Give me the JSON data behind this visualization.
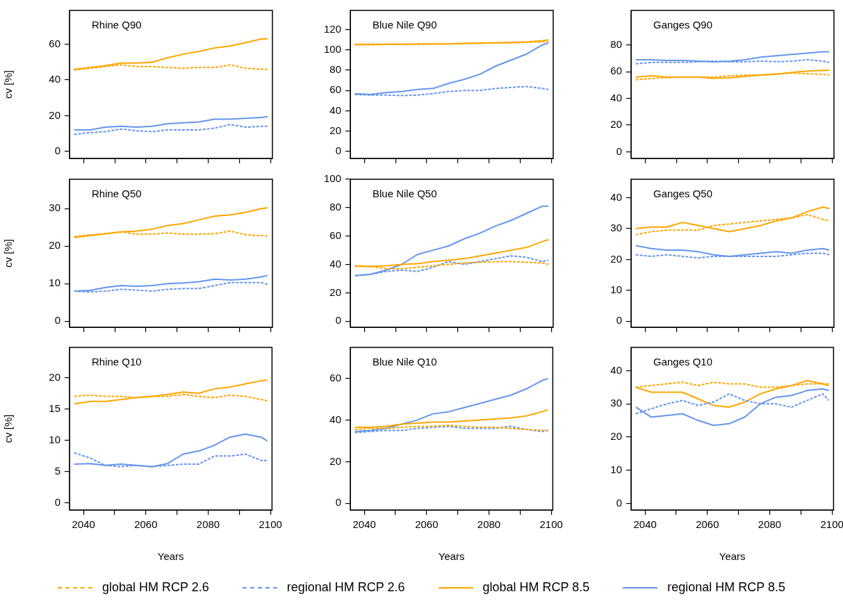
{
  "chart_data": [
    {
      "type": "line",
      "title": "Rhine Q90",
      "ylabel": "cv [%]",
      "x": [
        2037,
        2042,
        2047,
        2052,
        2057,
        2062,
        2067,
        2072,
        2077,
        2082,
        2087,
        2092,
        2097,
        2099
      ],
      "xlim": [
        2035.5,
        2100.5
      ],
      "xticks": [
        2040,
        {
          "value": 2050,
          "label": null
        },
        2060,
        {
          "value": 2070,
          "label": null
        },
        2080,
        {
          "value": 2090,
          "label": null
        },
        2100
      ],
      "ylim": [
        -4,
        79
      ],
      "yticks": [
        0,
        20,
        40,
        60
      ],
      "tick_labels": "y",
      "series": [
        {
          "color": "#ffa500",
          "line_style": "dashed",
          "values": [
            45.5,
            46.5,
            47.5,
            48.5,
            47.5,
            47.5,
            47,
            46.5,
            47,
            47,
            48.5,
            46.5,
            46,
            46
          ]
        },
        {
          "color": "#6495ed",
          "line_style": "dashed",
          "values": [
            9.5,
            10.5,
            11,
            12.5,
            11.5,
            11,
            12,
            12,
            12,
            13,
            15,
            13.5,
            14,
            14
          ]
        },
        {
          "color": "#ffa500",
          "line_style": "solid",
          "values": [
            46,
            47,
            48,
            49.5,
            49.5,
            50,
            52.5,
            54.5,
            56,
            58,
            59,
            61,
            63,
            63
          ]
        },
        {
          "color": "#6495ed",
          "line_style": "solid",
          "values": [
            12,
            12,
            13.5,
            14,
            13.5,
            14,
            15.5,
            16,
            16.5,
            18,
            18,
            18.5,
            19,
            19.5
          ]
        }
      ]
    },
    {
      "type": "line",
      "title": "Blue Nile Q90",
      "x": [
        2037,
        2042,
        2047,
        2052,
        2057,
        2062,
        2067,
        2072,
        2077,
        2082,
        2087,
        2092,
        2097,
        2099
      ],
      "xlim": [
        2035.5,
        2100.5
      ],
      "xticks": [
        2040,
        {
          "value": 2050,
          "label": null
        },
        2060,
        {
          "value": 2070,
          "label": null
        },
        2080,
        {
          "value": 2090,
          "label": null
        },
        2100
      ],
      "ylim": [
        -7,
        139
      ],
      "yticks": [
        0,
        20,
        40,
        60,
        80,
        100,
        120
      ],
      "tick_labels": "y",
      "series": [
        {
          "color": "#ffa500",
          "line_style": "dashed",
          "values": [
            105,
            105,
            105.5,
            105.5,
            105.5,
            106,
            106,
            106.5,
            106.5,
            107,
            107,
            107.5,
            108,
            108
          ]
        },
        {
          "color": "#6495ed",
          "line_style": "dashed",
          "values": [
            56,
            55.5,
            55.5,
            55,
            55.5,
            57,
            59,
            60,
            60,
            62,
            63,
            64,
            62,
            61
          ]
        },
        {
          "color": "#ffa500",
          "line_style": "solid",
          "values": [
            105.5,
            105.5,
            105.5,
            105.5,
            106,
            106,
            106,
            106.5,
            107,
            107,
            107.5,
            108,
            109,
            110
          ]
        },
        {
          "color": "#6495ed",
          "line_style": "solid",
          "values": [
            57,
            56,
            58,
            59,
            61,
            62,
            67,
            71,
            76,
            84,
            90,
            96,
            105,
            107
          ]
        }
      ]
    },
    {
      "type": "line",
      "title": "Ganges Q90",
      "x": [
        2037,
        2042,
        2047,
        2052,
        2057,
        2062,
        2067,
        2072,
        2077,
        2082,
        2087,
        2092,
        2097,
        2099
      ],
      "xlim": [
        2035.5,
        2100.5
      ],
      "xticks": [
        2040,
        {
          "value": 2050,
          "label": null
        },
        2060,
        {
          "value": 2070,
          "label": null
        },
        2080,
        {
          "value": 2090,
          "label": null
        },
        2100
      ],
      "ylim": [
        -5,
        106
      ],
      "yticks": [
        0,
        20,
        40,
        60,
        80
      ],
      "tick_labels": "y",
      "series": [
        {
          "color": "#ffa500",
          "line_style": "dashed",
          "values": [
            54,
            55,
            55.5,
            56,
            56,
            56,
            57,
            57.5,
            57.5,
            58.5,
            59,
            58.5,
            58,
            57.5
          ]
        },
        {
          "color": "#6495ed",
          "line_style": "dashed",
          "values": [
            66,
            67,
            67,
            67,
            67.5,
            68,
            67.5,
            67.5,
            68,
            67.5,
            68,
            69,
            68,
            67
          ]
        },
        {
          "color": "#ffa500",
          "line_style": "solid",
          "values": [
            56,
            57,
            56,
            56,
            56,
            55,
            55.5,
            56.5,
            57.5,
            58,
            59.5,
            60.5,
            61,
            61
          ]
        },
        {
          "color": "#6495ed",
          "line_style": "solid",
          "values": [
            69,
            69,
            68.5,
            68.5,
            68,
            67.5,
            68,
            69,
            71,
            72,
            73,
            74,
            75,
            75
          ]
        }
      ]
    },
    {
      "type": "line",
      "title": "Rhine Q50",
      "ylabel": "cv [%]",
      "x": [
        2037,
        2042,
        2047,
        2052,
        2057,
        2062,
        2067,
        2072,
        2077,
        2082,
        2087,
        2092,
        2097,
        2099
      ],
      "xlim": [
        2035.5,
        2100.5
      ],
      "xticks": [
        2040,
        {
          "value": 2050,
          "label": null
        },
        2060,
        {
          "value": 2070,
          "label": null
        },
        2080,
        {
          "value": 2090,
          "label": null
        },
        2100
      ],
      "ylim": [
        -1.6,
        37.8
      ],
      "yticks": [
        0,
        10,
        20,
        30
      ],
      "tick_labels": "y",
      "series": [
        {
          "color": "#ffa500",
          "line_style": "dashed",
          "values": [
            22.5,
            23,
            23.3,
            23.8,
            23.2,
            23.2,
            23.5,
            23.2,
            23.2,
            23.3,
            24,
            23,
            22.8,
            22.7
          ]
        },
        {
          "color": "#6495ed",
          "line_style": "dashed",
          "values": [
            8,
            7.8,
            8,
            8.5,
            8.3,
            8,
            8.5,
            8.7,
            8.7,
            9.5,
            10.3,
            10.3,
            10.3,
            9.8
          ]
        },
        {
          "color": "#ffa500",
          "line_style": "solid",
          "values": [
            22.3,
            22.8,
            23.3,
            23.8,
            24,
            24.5,
            25.5,
            26,
            27,
            28,
            28.3,
            29,
            30,
            30.2
          ]
        },
        {
          "color": "#6495ed",
          "line_style": "solid",
          "values": [
            8,
            8.2,
            9,
            9.5,
            9.3,
            9.5,
            10,
            10.2,
            10.5,
            11.2,
            11,
            11.2,
            11.8,
            12.2
          ]
        }
      ]
    },
    {
      "type": "line",
      "title": "Blue Nile Q50",
      "x": [
        2037,
        2042,
        2047,
        2052,
        2057,
        2062,
        2067,
        2072,
        2077,
        2082,
        2087,
        2092,
        2097,
        2099
      ],
      "xlim": [
        2035.5,
        2100.5
      ],
      "xticks": [
        2040,
        {
          "value": 2050,
          "label": null
        },
        2060,
        {
          "value": 2070,
          "label": null
        },
        2080,
        {
          "value": 2090,
          "label": null
        },
        2100
      ],
      "ylim": [
        -4.3,
        100
      ],
      "yticks": [
        0,
        20,
        40,
        60,
        80,
        100
      ],
      "tick_labels": "y",
      "series": [
        {
          "color": "#ffa500",
          "line_style": "dashed",
          "values": [
            38.5,
            38.5,
            37,
            37,
            38,
            39,
            40,
            41,
            41.5,
            42,
            42,
            41.5,
            41,
            40
          ]
        },
        {
          "color": "#6495ed",
          "line_style": "dashed",
          "values": [
            32,
            33,
            35,
            36,
            35,
            38,
            42,
            40,
            42,
            44,
            46,
            45,
            42,
            43
          ]
        },
        {
          "color": "#ffa500",
          "line_style": "solid",
          "values": [
            39,
            38.5,
            39,
            40,
            40.5,
            42,
            43,
            44,
            46,
            48,
            50,
            52,
            56,
            57.5
          ]
        },
        {
          "color": "#6495ed",
          "line_style": "solid",
          "values": [
            32,
            33,
            36,
            40,
            47,
            50,
            53,
            58,
            62,
            67,
            71,
            76,
            81,
            81
          ]
        }
      ]
    },
    {
      "type": "line",
      "title": "Ganges Q50",
      "x": [
        2037,
        2042,
        2047,
        2052,
        2057,
        2062,
        2067,
        2072,
        2077,
        2082,
        2087,
        2092,
        2097,
        2099
      ],
      "xlim": [
        2035.5,
        2100.5
      ],
      "xticks": [
        2040,
        {
          "value": 2050,
          "label": null
        },
        2060,
        {
          "value": 2070,
          "label": null
        },
        2080,
        {
          "value": 2090,
          "label": null
        },
        2100
      ],
      "ylim": [
        -2,
        46
      ],
      "yticks": [
        0,
        10,
        20,
        30,
        40
      ],
      "tick_labels": "y",
      "series": [
        {
          "color": "#ffa500",
          "line_style": "dashed",
          "values": [
            28,
            29,
            29.5,
            29.5,
            29.5,
            31,
            31.5,
            32,
            32.5,
            33,
            33.5,
            34.5,
            33,
            32.5
          ]
        },
        {
          "color": "#6495ed",
          "line_style": "dashed",
          "values": [
            21.5,
            21,
            21.5,
            21,
            20.5,
            21,
            21,
            21,
            21,
            21,
            21.5,
            22,
            22,
            21.5
          ]
        },
        {
          "color": "#ffa500",
          "line_style": "solid",
          "values": [
            30,
            30.5,
            30.5,
            32,
            31,
            30,
            29,
            30,
            31,
            32.5,
            33.5,
            35.5,
            37,
            36.5
          ]
        },
        {
          "color": "#6495ed",
          "line_style": "solid",
          "values": [
            24.5,
            23.5,
            23,
            23,
            22.5,
            21.5,
            21,
            21.5,
            22,
            22.5,
            22,
            23,
            23.5,
            23
          ]
        }
      ]
    },
    {
      "type": "line",
      "title": "Rhine Q10",
      "ylabel": "cv [%]",
      "xlabel": "Years",
      "x": [
        2037,
        2042,
        2047,
        2052,
        2057,
        2062,
        2067,
        2072,
        2077,
        2082,
        2087,
        2092,
        2097,
        2099
      ],
      "xlim": [
        2035.5,
        2100.5
      ],
      "xticks": [
        2040,
        {
          "value": 2050,
          "label": null
        },
        2060,
        {
          "value": 2070,
          "label": null
        },
        2080,
        {
          "value": 2090,
          "label": null
        },
        2100
      ],
      "ylim": [
        -1.1,
        24.8
      ],
      "yticks": [
        0,
        5,
        10,
        15,
        20
      ],
      "series": [
        {
          "color": "#ffa500",
          "line_style": "dashed",
          "values": [
            17,
            17.2,
            17,
            17,
            16.8,
            17,
            17,
            17.3,
            17,
            16.8,
            17.2,
            17,
            16.5,
            16.3
          ]
        },
        {
          "color": "#6495ed",
          "line_style": "dashed",
          "values": [
            8,
            7.2,
            6,
            5.8,
            6,
            5.8,
            6,
            6.2,
            6.2,
            7.5,
            7.5,
            7.8,
            6.8,
            6.8
          ]
        },
        {
          "color": "#ffa500",
          "line_style": "solid",
          "values": [
            15.8,
            16.2,
            16.2,
            16.5,
            16.8,
            17,
            17.3,
            17.7,
            17.5,
            18.2,
            18.5,
            19,
            19.5,
            19.6
          ]
        },
        {
          "color": "#6495ed",
          "line_style": "solid",
          "values": [
            6.2,
            6.3,
            6,
            6.2,
            6,
            5.8,
            6.3,
            7.8,
            8.3,
            9.2,
            10.5,
            11,
            10.5,
            9.9
          ]
        }
      ]
    },
    {
      "type": "line",
      "title": "Blue Nile Q10",
      "xlabel": "Years",
      "legend": "bottom",
      "x": [
        2037,
        2042,
        2047,
        2052,
        2057,
        2062,
        2067,
        2072,
        2077,
        2082,
        2087,
        2092,
        2097,
        2099
      ],
      "xlim": [
        2035.5,
        2100.5
      ],
      "xticks": [
        2040,
        {
          "value": 2050,
          "label": null
        },
        2060,
        {
          "value": 2070,
          "label": null
        },
        2080,
        {
          "value": 2090,
          "label": null
        },
        2100
      ],
      "ylim": [
        -3.3,
        75
      ],
      "yticks": [
        0,
        20,
        40,
        60
      ],
      "series": [
        {
          "name": "global HM RCP 2.6",
          "color": "#ffa500",
          "line_style": "dashed",
          "values": [
            35.5,
            36,
            36,
            36.5,
            37,
            37,
            37.5,
            37,
            36.5,
            36.5,
            36,
            35.5,
            35,
            35
          ]
        },
        {
          "name": "regional HM RCP 2.6",
          "color": "#6495ed",
          "line_style": "dashed",
          "values": [
            34,
            34.5,
            35,
            35,
            36,
            36.5,
            37,
            36,
            36,
            36,
            37,
            35.5,
            34.5,
            35
          ]
        },
        {
          "name": "global HM RCP 8.5",
          "color": "#ffa500",
          "line_style": "solid",
          "values": [
            36.5,
            36.5,
            37,
            38,
            38.5,
            39,
            39,
            39.5,
            40,
            40.5,
            41,
            42,
            44,
            45
          ]
        },
        {
          "name": "regional HM RCP 8.5",
          "color": "#6495ed",
          "line_style": "solid",
          "values": [
            34.5,
            35,
            36,
            38,
            40,
            43,
            44,
            46,
            48,
            50,
            52,
            55,
            59,
            60
          ]
        }
      ]
    },
    {
      "type": "line",
      "title": "Ganges Q10",
      "xlabel": "Years",
      "x": [
        2037,
        2042,
        2047,
        2052,
        2057,
        2062,
        2067,
        2072,
        2077,
        2082,
        2087,
        2092,
        2097,
        2099
      ],
      "xlim": [
        2035.5,
        2100.5
      ],
      "xticks": [
        2040,
        {
          "value": 2050,
          "label": null
        },
        2060,
        {
          "value": 2070,
          "label": null
        },
        2080,
        {
          "value": 2090,
          "label": null
        },
        2100
      ],
      "ylim": [
        -2,
        47
      ],
      "yticks": [
        0,
        10,
        20,
        30,
        40
      ],
      "series": [
        {
          "color": "#ffa500",
          "line_style": "dashed",
          "values": [
            35,
            35.5,
            36,
            36.5,
            35.5,
            36.5,
            36,
            36,
            35,
            35,
            35.5,
            36,
            36,
            36
          ]
        },
        {
          "color": "#6495ed",
          "line_style": "dashed",
          "values": [
            27,
            28.5,
            30,
            31,
            29.5,
            30.5,
            33,
            31,
            30,
            30,
            29,
            31,
            33,
            31
          ]
        },
        {
          "color": "#ffa500",
          "line_style": "solid",
          "values": [
            35,
            33.5,
            33.5,
            33.5,
            31.5,
            29.5,
            29,
            30.5,
            33,
            34.5,
            35.5,
            37,
            36,
            35.5
          ]
        },
        {
          "color": "#6495ed",
          "line_style": "solid",
          "values": [
            29,
            26,
            26.5,
            27,
            25,
            23.5,
            24,
            26,
            30,
            32,
            32.5,
            34,
            34.5,
            34
          ]
        }
      ]
    }
  ]
}
